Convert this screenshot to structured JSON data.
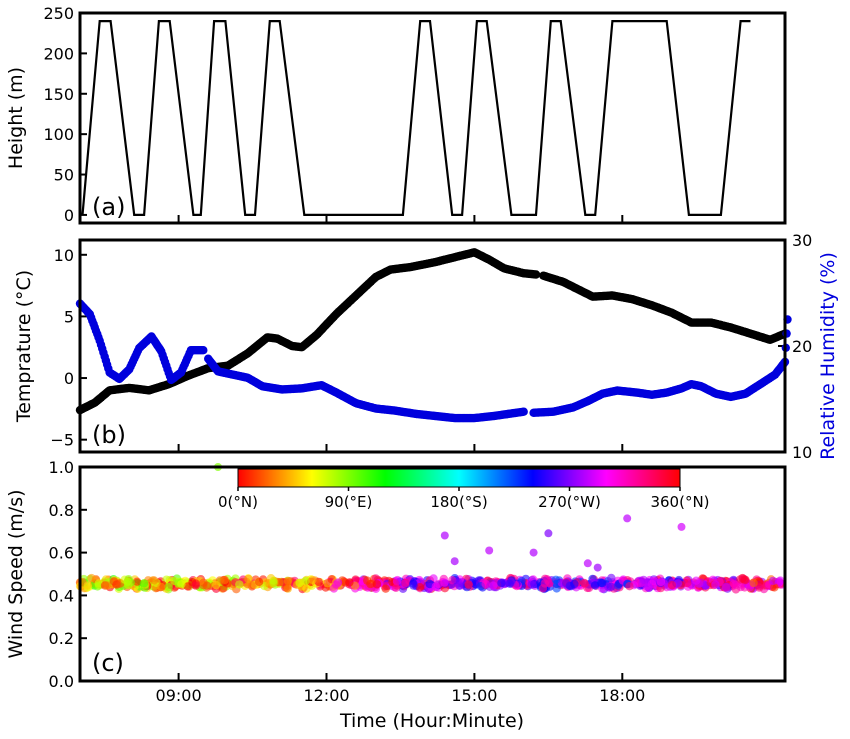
{
  "chart_data": [
    {
      "panel_label": "(a)",
      "type": "line",
      "ylabel": "Height (m)",
      "xlim": [
        7.0,
        21.3
      ],
      "ylim": [
        -10,
        250
      ],
      "yticks": [
        0,
        50,
        100,
        150,
        200,
        250
      ],
      "ytick_labels": [
        "0",
        "50",
        "100",
        "150",
        "200",
        "250"
      ],
      "series": [
        {
          "color": "#000000",
          "points": [
            [
              7.05,
              0
            ],
            [
              7.4,
              240
            ],
            [
              7.62,
              240
            ],
            [
              8.1,
              0
            ],
            [
              8.3,
              0
            ],
            [
              8.6,
              240
            ],
            [
              8.82,
              240
            ],
            [
              9.3,
              0
            ],
            [
              9.45,
              0
            ],
            [
              9.72,
              240
            ],
            [
              9.95,
              240
            ],
            [
              10.35,
              0
            ],
            [
              10.55,
              0
            ],
            [
              10.85,
              240
            ],
            [
              11.05,
              240
            ],
            [
              11.55,
              0
            ],
            [
              13.55,
              0
            ],
            [
              13.9,
              240
            ],
            [
              14.1,
              240
            ],
            [
              14.55,
              0
            ],
            [
              14.75,
              0
            ],
            [
              15.05,
              240
            ],
            [
              15.25,
              240
            ],
            [
              15.75,
              0
            ],
            [
              16.25,
              0
            ],
            [
              16.55,
              240
            ],
            [
              16.75,
              240
            ],
            [
              17.25,
              0
            ],
            [
              17.45,
              0
            ],
            [
              17.8,
              240
            ],
            [
              18.9,
              240
            ],
            [
              19.35,
              0
            ],
            [
              20.0,
              0
            ],
            [
              20.4,
              240
            ],
            [
              20.6,
              240
            ]
          ]
        }
      ]
    },
    {
      "panel_label": "(b)",
      "type": "scatter",
      "ylabel": "Temprature (°C)",
      "ylabel_right": "Relative Humidity (%)",
      "xlim": [
        7.0,
        21.3
      ],
      "ylim": [
        -6,
        11.2
      ],
      "yticks": [
        -5,
        0,
        5,
        10
      ],
      "ytick_labels": [
        "−5",
        "0",
        "5",
        "10"
      ],
      "ylim_right": [
        10,
        30
      ],
      "yticks_right": [
        10,
        20,
        30
      ],
      "ytick_labels_right": [
        "10",
        "20",
        "30"
      ],
      "series": [
        {
          "axis": "left",
          "color": "#000000",
          "points": [
            [
              7.0,
              -2.6
            ],
            [
              7.3,
              -2.0
            ],
            [
              7.6,
              -1.0
            ],
            [
              8.0,
              -0.8
            ],
            [
              8.4,
              -1.0
            ],
            [
              8.8,
              -0.5
            ],
            [
              9.2,
              0.2
            ],
            [
              9.6,
              0.8
            ],
            [
              10.0,
              1.0
            ],
            [
              10.4,
              2.0
            ],
            [
              10.8,
              3.3
            ],
            [
              11.0,
              3.2
            ],
            [
              11.3,
              2.6
            ],
            [
              11.5,
              2.5
            ],
            [
              11.8,
              3.5
            ],
            [
              12.2,
              5.2
            ],
            [
              12.6,
              6.7
            ],
            [
              13.0,
              8.2
            ],
            [
              13.3,
              8.8
            ],
            [
              13.7,
              9.0
            ],
            [
              14.2,
              9.4
            ],
            [
              14.6,
              9.8
            ],
            [
              15.0,
              10.2
            ],
            [
              15.3,
              9.6
            ],
            [
              15.6,
              8.9
            ],
            [
              16.0,
              8.5
            ],
            [
              16.25,
              8.4
            ]
          ]
        },
        {
          "axis": "left",
          "color": "#000000",
          "points": [
            [
              16.4,
              8.3
            ],
            [
              16.8,
              7.8
            ],
            [
              17.1,
              7.2
            ],
            [
              17.4,
              6.6
            ],
            [
              17.8,
              6.7
            ],
            [
              18.2,
              6.4
            ],
            [
              18.6,
              5.9
            ],
            [
              19.0,
              5.3
            ],
            [
              19.4,
              4.5
            ],
            [
              19.8,
              4.5
            ],
            [
              20.2,
              4.1
            ],
            [
              20.6,
              3.6
            ],
            [
              21.0,
              3.1
            ],
            [
              21.3,
              3.6
            ]
          ]
        },
        {
          "axis": "right",
          "color": "#0000dd",
          "points": [
            [
              7.0,
              24.0
            ],
            [
              7.2,
              23.0
            ],
            [
              7.4,
              20.5
            ],
            [
              7.6,
              17.5
            ],
            [
              7.8,
              16.9
            ],
            [
              8.0,
              17.8
            ],
            [
              8.2,
              19.8
            ],
            [
              8.45,
              20.9
            ],
            [
              8.65,
              19.5
            ],
            [
              8.85,
              16.8
            ],
            [
              9.05,
              17.5
            ],
            [
              9.25,
              19.6
            ],
            [
              9.5,
              19.6
            ]
          ]
        },
        {
          "axis": "right",
          "color": "#0000dd",
          "points": [
            [
              9.6,
              18.8
            ],
            [
              9.8,
              17.6
            ],
            [
              10.1,
              17.3
            ],
            [
              10.4,
              17.0
            ],
            [
              10.7,
              16.2
            ],
            [
              11.1,
              15.9
            ],
            [
              11.5,
              16.0
            ],
            [
              11.9,
              16.3
            ],
            [
              12.2,
              15.6
            ],
            [
              12.6,
              14.6
            ],
            [
              13.0,
              14.1
            ],
            [
              13.4,
              13.9
            ],
            [
              13.8,
              13.6
            ],
            [
              14.2,
              13.4
            ],
            [
              14.6,
              13.2
            ],
            [
              15.0,
              13.2
            ],
            [
              15.4,
              13.4
            ],
            [
              15.7,
              13.6
            ],
            [
              16.0,
              13.8
            ]
          ]
        },
        {
          "axis": "right",
          "color": "#0000dd",
          "points": [
            [
              16.2,
              13.7
            ],
            [
              16.6,
              13.8
            ],
            [
              17.0,
              14.2
            ],
            [
              17.3,
              14.8
            ],
            [
              17.6,
              15.5
            ],
            [
              17.9,
              15.8
            ],
            [
              18.3,
              15.6
            ],
            [
              18.6,
              15.4
            ],
            [
              18.9,
              15.6
            ],
            [
              19.2,
              16.0
            ],
            [
              19.4,
              16.4
            ],
            [
              19.6,
              16.2
            ],
            [
              19.9,
              15.5
            ],
            [
              20.2,
              15.2
            ],
            [
              20.5,
              15.5
            ],
            [
              20.8,
              16.4
            ],
            [
              21.1,
              17.3
            ],
            [
              21.3,
              18.5
            ],
            [
              21.35,
              22.5
            ]
          ]
        }
      ]
    },
    {
      "panel_label": "(c)",
      "type": "scatter",
      "xlabel": "Time (Hour:Minute)",
      "ylabel": "Wind Speed (m/s)",
      "xlim": [
        7.0,
        21.3
      ],
      "ylim": [
        0,
        1.0
      ],
      "yticks": [
        0,
        0.2,
        0.4,
        0.6,
        0.8,
        1.0
      ],
      "ytick_labels": [
        "0.0",
        "0.2",
        "0.4",
        "0.6",
        "0.8",
        "1.0"
      ],
      "xticks": [
        9,
        12,
        15,
        18
      ],
      "xtick_labels": [
        "09:00",
        "12:00",
        "15:00",
        "18:00"
      ],
      "colorbar": {
        "range": [
          0,
          360
        ],
        "ticks": [
          0,
          90,
          180,
          270,
          360
        ],
        "tick_labels": [
          "0(°N)",
          "90(°E)",
          "180(°S)",
          "270(°W)",
          "360(°N)"
        ]
      },
      "band": {
        "x_range": [
          7.0,
          21.3
        ],
        "speed_center": 0.455,
        "speed_spread": 0.02,
        "direction_trend": [
          [
            7.0,
            60
          ],
          [
            9.0,
            45
          ],
          [
            11.5,
            25
          ],
          [
            13.5,
            300
          ],
          [
            15.5,
            285
          ],
          [
            17.5,
            275
          ],
          [
            19.5,
            300
          ],
          [
            21.3,
            340
          ]
        ]
      },
      "outliers": [
        [
          14.4,
          0.68,
          282
        ],
        [
          14.6,
          0.56,
          280
        ],
        [
          15.3,
          0.61,
          285
        ],
        [
          16.2,
          0.6,
          282
        ],
        [
          16.5,
          0.69,
          270
        ],
        [
          17.3,
          0.55,
          285
        ],
        [
          17.5,
          0.53,
          278
        ],
        [
          18.1,
          0.76,
          285
        ],
        [
          19.2,
          0.72,
          290
        ],
        [
          9.8,
          1.0,
          90
        ]
      ]
    }
  ]
}
